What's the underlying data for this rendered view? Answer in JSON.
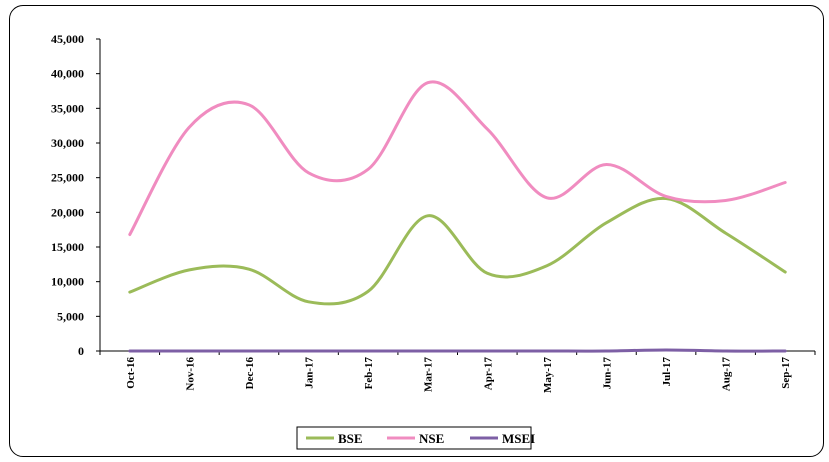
{
  "chart_data": {
    "type": "line",
    "smooth": true,
    "categories": [
      "Oct-16",
      "Nov-16",
      "Dec-16",
      "Jan-17",
      "Feb-17",
      "Mar-17",
      "Apr-17",
      "May-17",
      "Jun-17",
      "Jul-17",
      "Aug-17",
      "Sep-17"
    ],
    "series": [
      {
        "name": "BSE",
        "color": "#9bbb59",
        "values": [
          8500,
          11700,
          11800,
          7100,
          8600,
          19500,
          11200,
          12300,
          18500,
          22000,
          17000,
          11400
        ]
      },
      {
        "name": "NSE",
        "color": "#f08cc0",
        "values": [
          16800,
          32300,
          35500,
          25700,
          26200,
          38700,
          32000,
          22100,
          26900,
          22300,
          21700,
          24300
        ]
      },
      {
        "name": "MSEI",
        "color": "#7d5fa5",
        "values": [
          0,
          0,
          0,
          0,
          0,
          0,
          0,
          0,
          0,
          150,
          0,
          0
        ]
      }
    ],
    "yticks": [
      "0",
      "5,000",
      "10,000",
      "15,000",
      "20,000",
      "25,000",
      "30,000",
      "35,000",
      "40,000",
      "45,000"
    ],
    "ylim": [
      0,
      45000
    ],
    "grid": false,
    "legend": "bottom"
  }
}
